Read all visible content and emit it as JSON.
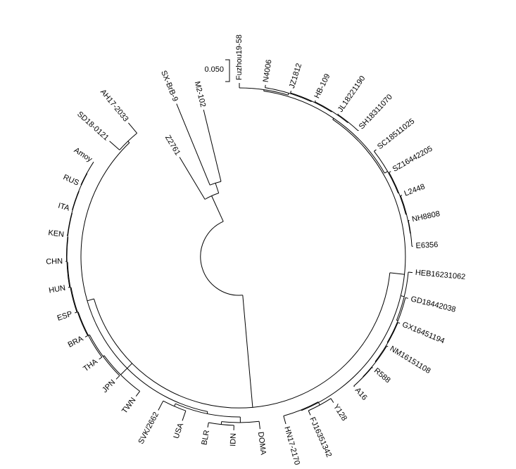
{
  "tree": {
    "taxa": [
      "Fuzhou19-58",
      "N4006",
      "JZ1812",
      "HB-109",
      "JL18221190",
      "SH18311070",
      "SC18511025",
      "SZ16442205",
      "L2448",
      "NH8808",
      "E6356",
      "HEB16231062",
      "GD18442038",
      "GX16451194",
      "NM16151108",
      "R588",
      "A16",
      "Y128",
      "FJ16351342",
      "HN17-2170",
      "DOMA",
      "IDN",
      "BLR",
      "USA",
      "SVK/2662",
      "TWN",
      "JPN",
      "THA",
      "BRA",
      "ESP",
      "HUN",
      "CHN",
      "KEN",
      "ITA",
      "RUS",
      "Amoy",
      "SD18-0121",
      "AH17-2033",
      "Z2761",
      "SX-BrB-9",
      "M2-102"
    ],
    "scale_bar": {
      "label": "0.050"
    },
    "colors": {
      "line": "#000000",
      "background": "#ffffff"
    }
  }
}
